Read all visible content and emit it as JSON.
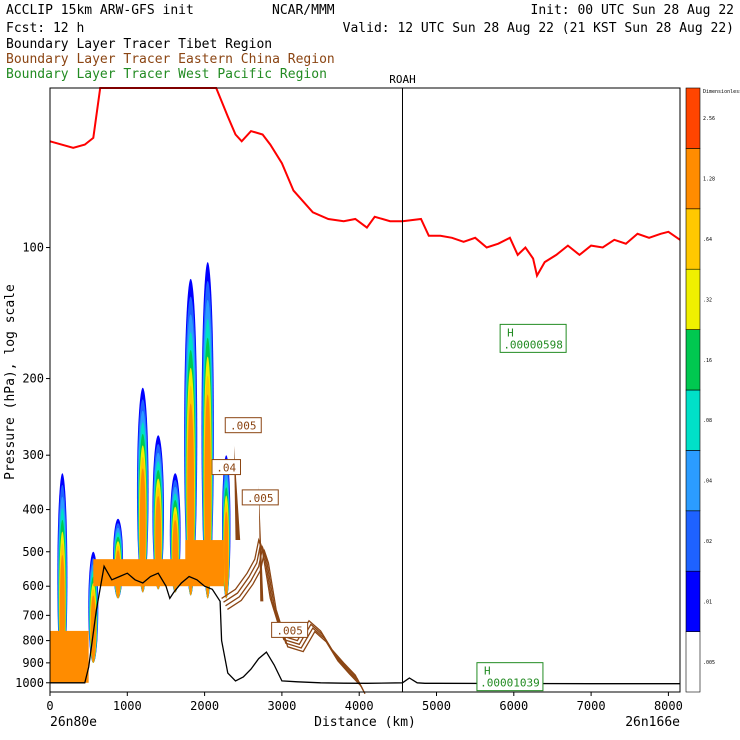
{
  "header": {
    "model": "ACCLIP 15km ARW-GFS init",
    "org": "NCAR/MMM",
    "init": "Init: 00 UTC Sun 28 Aug 22",
    "fcst": "Fcst:   12 h",
    "valid": "Valid: 12 UTC Sun 28 Aug 22 (21 KST Sun 28 Aug 22)",
    "legend": [
      {
        "label": "Boundary Layer Tracer  Tibet Region",
        "color": "#000000"
      },
      {
        "label": "Boundary Layer Tracer  Eastern China Region",
        "color": "#8b4513"
      },
      {
        "label": "Boundary Layer Tracer  West Pacific Region",
        "color": "#228b22"
      }
    ]
  },
  "chart_data": {
    "type": "heatmap",
    "xlabel": "Distance (km)",
    "ylabel": "Pressure (hPa), log scale",
    "y_scale": "log",
    "xlim": [
      0,
      8150
    ],
    "ylim": [
      1050,
      43
    ],
    "x_ticks": [
      0,
      1000,
      2000,
      3000,
      4000,
      5000,
      6000,
      7000,
      8000
    ],
    "y_ticks": [
      100,
      200,
      300,
      400,
      500,
      600,
      700,
      800,
      900,
      1000
    ],
    "x_left_label": "26n80e",
    "x_right_label": "26n166e",
    "station": {
      "name": "ROAH",
      "x": 4560
    },
    "colorbar": {
      "levels": [
        ".005",
        ".01",
        ".02",
        ".04",
        ".08",
        ".16",
        ".32",
        ".64",
        "1.28",
        "2.56",
        "Dimensionless"
      ],
      "colors": [
        "#ffffff",
        "#0000ff",
        "#1e62ff",
        "#2b9cff",
        "#00e0c8",
        "#00c850",
        "#f0f000",
        "#ffc800",
        "#ff8c00",
        "#ff4500"
      ]
    },
    "contour_labels": [
      {
        "text": ".005",
        "x": 2500,
        "p": 258
      },
      {
        "text": ".04",
        "x": 2280,
        "p": 322
      },
      {
        "text": ".005",
        "x": 2720,
        "p": 378
      },
      {
        "text": ".005",
        "x": 3100,
        "p": 762
      }
    ],
    "highs": [
      {
        "letter": "H",
        "value": ".00000598",
        "x": 6250,
        "p": 160
      },
      {
        "letter": "H",
        "value": ".00001039",
        "x": 5950,
        "p": 958
      }
    ],
    "tropopause_red": {
      "x": [
        0,
        300,
        450,
        560,
        650,
        1200,
        2150,
        2300,
        2400,
        2480,
        2600,
        2750,
        2850,
        3000,
        3150,
        3400,
        3600,
        3800,
        3950,
        4100,
        4200,
        4400,
        4560,
        4800,
        4900,
        5050,
        5200,
        5350,
        5500,
        5650,
        5800,
        5950,
        6050,
        6150,
        6250,
        6300,
        6400,
        6550,
        6700,
        6850,
        7000,
        7150,
        7300,
        7450,
        7600,
        7750,
        7900,
        8000,
        8150
      ],
      "p": [
        57,
        59,
        58,
        56,
        43,
        43,
        43,
        50,
        55,
        57,
        54,
        55,
        58,
        64,
        74,
        83,
        86,
        87,
        86,
        90,
        85,
        87,
        87,
        86,
        94,
        94,
        95,
        97,
        95,
        100,
        98,
        95,
        104,
        100,
        106,
        116,
        108,
        104,
        99,
        104,
        99,
        100,
        96,
        98,
        93,
        95,
        93,
        92,
        96
      ]
    },
    "terrain_black": {
      "x": [
        0,
        100,
        200,
        350,
        450,
        500,
        600,
        700,
        750,
        800,
        900,
        1000,
        1100,
        1200,
        1300,
        1400,
        1500,
        1550,
        1600,
        1700,
        1800,
        1900,
        2000,
        2100,
        2200,
        2220,
        2300,
        2400,
        2500,
        2600,
        2700,
        2800,
        2900,
        3000,
        3200,
        3500,
        3800,
        4100,
        4560,
        4650,
        4750,
        4850,
        5000,
        6000,
        7000,
        8150
      ],
      "p": [
        1000,
        1000,
        1000,
        1000,
        1000,
        920,
        680,
        540,
        560,
        580,
        570,
        560,
        580,
        590,
        570,
        560,
        600,
        640,
        620,
        590,
        570,
        580,
        600,
        610,
        650,
        800,
        950,
        990,
        970,
        930,
        880,
        850,
        910,
        990,
        995,
        1000,
        1002,
        1003,
        1000,
        975,
        1000,
        1003,
        1003,
        1004,
        1005,
        1005
      ]
    }
  }
}
